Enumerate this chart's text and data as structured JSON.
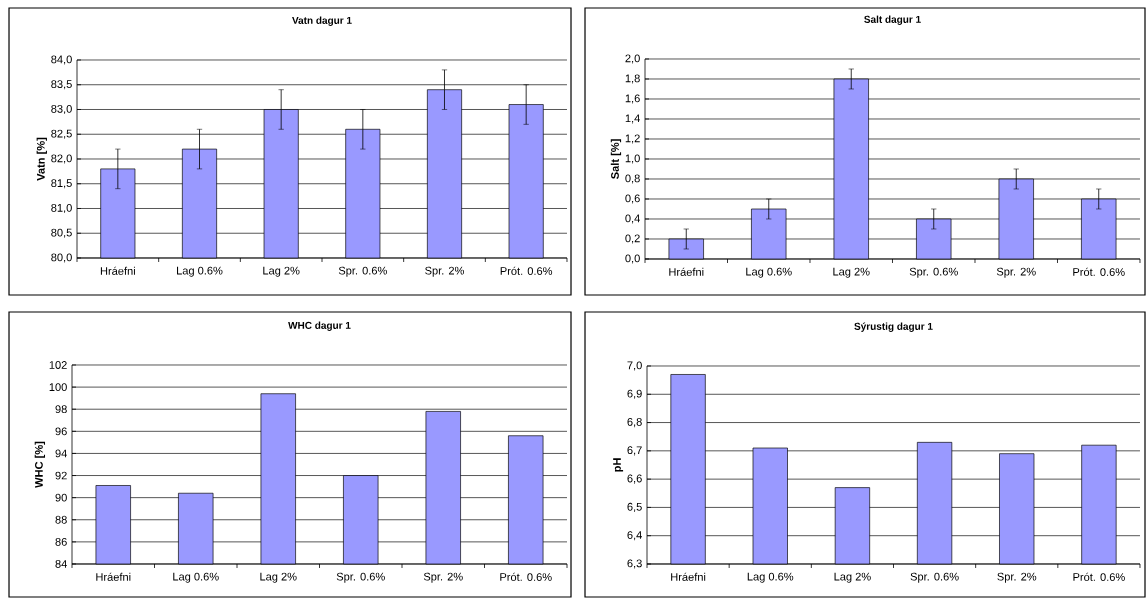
{
  "chart_data": [
    {
      "type": "bar",
      "title": "Vatn dagur 1",
      "ylabel": "Vatn [%]",
      "categories": [
        "Hráefni",
        "Lag 0.6%",
        "Lag 2%",
        "Spr. 0.6%",
        "Spr. 2%",
        "Prót. 0.6%"
      ],
      "values": [
        81.8,
        82.2,
        83.0,
        82.6,
        83.4,
        83.1
      ],
      "errors": [
        0.4,
        0.4,
        0.4,
        0.4,
        0.4,
        0.4
      ],
      "color": "#9999ff",
      "ylim": [
        80,
        84
      ],
      "yticks": [
        {
          "value": 80,
          "label": "80,0"
        },
        {
          "value": 80.5,
          "label": "80,5"
        },
        {
          "value": 81,
          "label": "81,0"
        },
        {
          "value": 81.5,
          "label": "81,5"
        },
        {
          "value": 82,
          "label": "82,0"
        },
        {
          "value": 82.5,
          "label": "82,5"
        },
        {
          "value": 83,
          "label": "83,0"
        },
        {
          "value": 83.5,
          "label": "83,5"
        },
        {
          "value": 84,
          "label": "84,0"
        }
      ],
      "grid": "y"
    },
    {
      "type": "bar",
      "title": "Salt dagur 1",
      "ylabel": "Salt [%]",
      "categories": [
        "Hráefni",
        "Lag 0.6%",
        "Lag 2%",
        "Spr. 0.6%",
        "Spr. 2%",
        "Prót. 0.6%"
      ],
      "values": [
        0.2,
        0.5,
        1.8,
        0.4,
        0.8,
        0.6
      ],
      "errors": [
        0.1,
        0.1,
        0.1,
        0.1,
        0.1,
        0.1
      ],
      "color": "#9999ff",
      "ylim": [
        0,
        2
      ],
      "yticks": [
        {
          "value": 0,
          "label": "0,0"
        },
        {
          "value": 0.2,
          "label": "0,2"
        },
        {
          "value": 0.4,
          "label": "0,4"
        },
        {
          "value": 0.6,
          "label": "0,6"
        },
        {
          "value": 0.8,
          "label": "0,8"
        },
        {
          "value": 1.0,
          "label": "1,0"
        },
        {
          "value": 1.2,
          "label": "1,2"
        },
        {
          "value": 1.4,
          "label": "1,4"
        },
        {
          "value": 1.6,
          "label": "1,6"
        },
        {
          "value": 1.8,
          "label": "1,8"
        },
        {
          "value": 2.0,
          "label": "2,0"
        }
      ],
      "grid": "y"
    },
    {
      "type": "bar",
      "title": "WHC dagur 1",
      "ylabel": "WHC [%]",
      "categories": [
        "Hráefni",
        "Lag 0.6%",
        "Lag 2%",
        "Spr. 0.6%",
        "Spr. 2%",
        "Prót. 0.6%"
      ],
      "values": [
        91.1,
        90.4,
        99.4,
        92.0,
        97.8,
        95.6
      ],
      "color": "#9999ff",
      "ylim": [
        84,
        102
      ],
      "yticks": [
        84,
        86,
        88,
        90,
        92,
        94,
        96,
        98,
        100,
        102
      ],
      "grid": "y"
    },
    {
      "type": "bar",
      "title": "Sýrustig dagur 1",
      "ylabel": "pH",
      "categories": [
        "Hráefni",
        "Lag 0.6%",
        "Lag 2%",
        "Spr. 0.6%",
        "Spr. 2%",
        "Prót. 0.6%"
      ],
      "values": [
        6.97,
        6.71,
        6.57,
        6.73,
        6.69,
        6.72
      ],
      "color": "#9999ff",
      "ylim": [
        6.3,
        7.0
      ],
      "yticks": [
        {
          "value": 6.3,
          "label": "6,3"
        },
        {
          "value": 6.4,
          "label": "6,4"
        },
        {
          "value": 6.5,
          "label": "6,5"
        },
        {
          "value": 6.6,
          "label": "6,6"
        },
        {
          "value": 6.7,
          "label": "6,7"
        },
        {
          "value": 6.8,
          "label": "6,8"
        },
        {
          "value": 6.9,
          "label": "6,9"
        },
        {
          "value": 7.0,
          "label": "7,0"
        }
      ],
      "grid": "y"
    }
  ]
}
